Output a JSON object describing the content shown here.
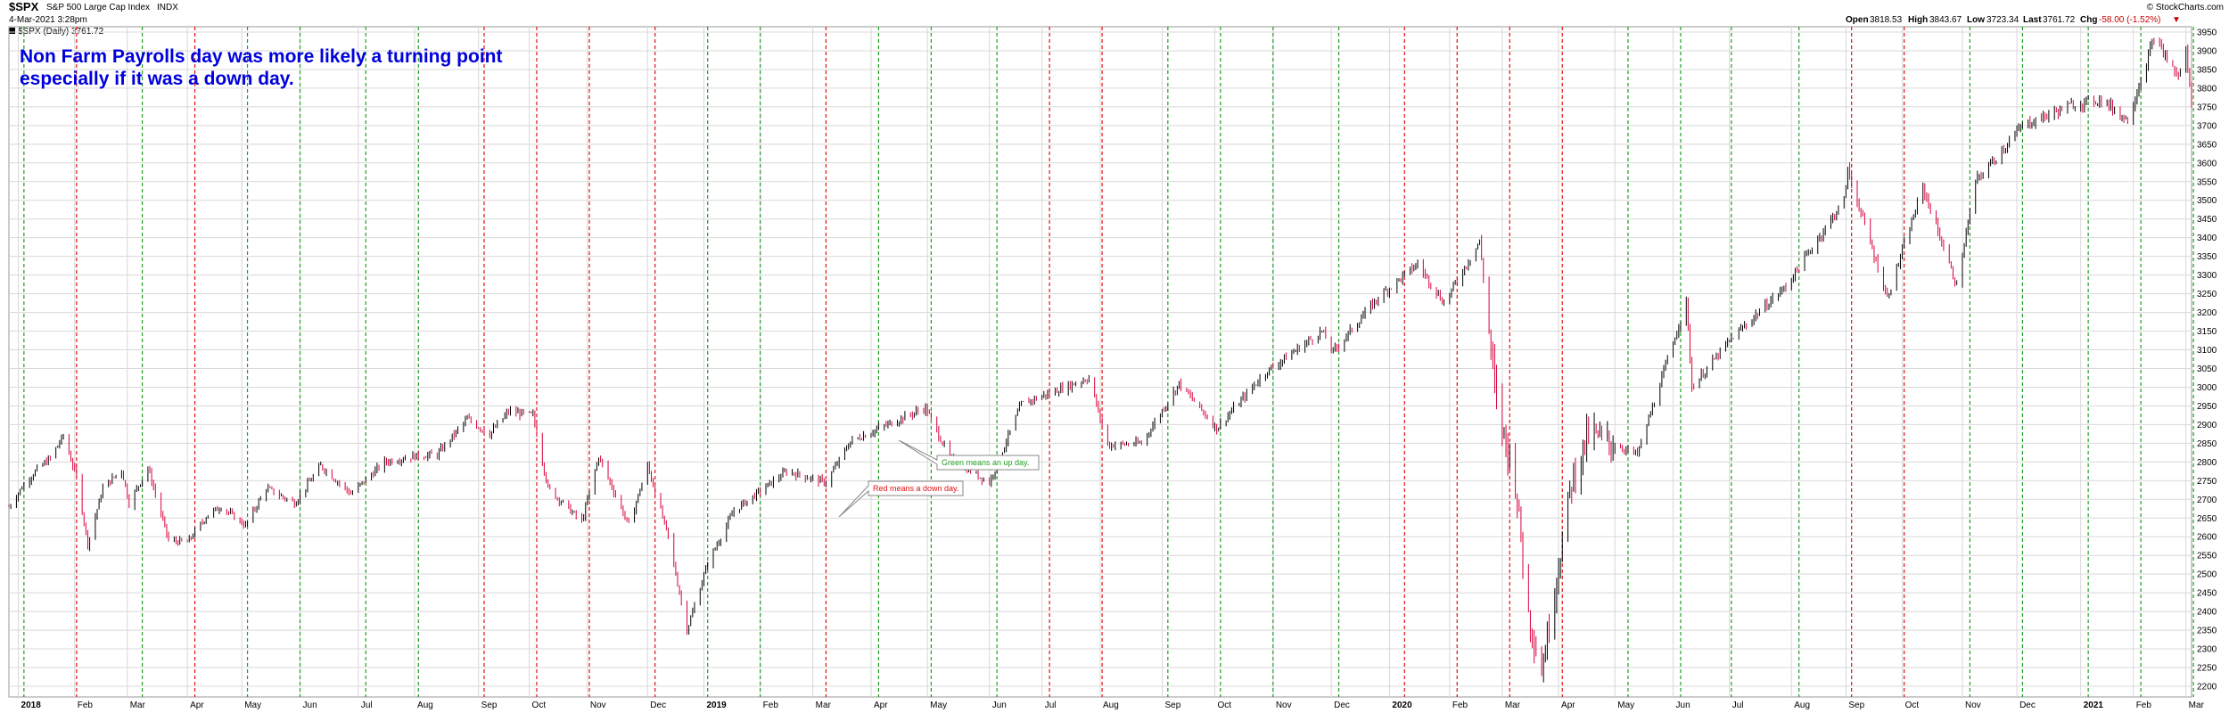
{
  "header": {
    "symbol": "$SPX",
    "name": "S&P 500 Large Cap Index",
    "exchange": "INDX",
    "timestamp": "4-Mar-2021 3:28pm",
    "legend_label": "$SPX (Daily) 3761.72",
    "copyright": "© StockCharts.com",
    "open_label": "Open",
    "open_value": "3818.53",
    "high_label": "High",
    "high_value": "3843.67",
    "low_label": "Low",
    "low_value": "3723.34",
    "last_label": "Last",
    "last_value": "3761.72",
    "chg_label": "Chg",
    "chg_value": "-58.00 (-1.52%)",
    "chg_arrow": "▼"
  },
  "annotation": {
    "line1": "Non Farm Payrolls day was more likely a turning point",
    "line2": "especially if it was a down day."
  },
  "callouts": {
    "green": "Green means an up day.",
    "red": "Red means a down day."
  },
  "colors": {
    "up": "#000000",
    "down": "#d8003a",
    "green_line": "#1f9e1f",
    "red_line": "#e01010",
    "annotation": "#0000dd",
    "grid": "#d8d8d8"
  },
  "chart_data": {
    "type": "line",
    "title": "$SPX S&P 500 Large Cap Index INDX",
    "ylabel": "",
    "xlabel": "",
    "ylim": [
      2200,
      3950
    ],
    "y_ticks": [
      2200,
      2250,
      2300,
      2350,
      2400,
      2450,
      2500,
      2550,
      2600,
      2650,
      2700,
      2750,
      2800,
      2850,
      2900,
      2950,
      3000,
      3050,
      3100,
      3150,
      3200,
      3250,
      3300,
      3350,
      3400,
      3450,
      3500,
      3550,
      3600,
      3650,
      3700,
      3750,
      3800,
      3850,
      3900,
      3950
    ],
    "x_start": "2017-12-28",
    "x_end": "2021-03-04",
    "x_ticks": [
      {
        "date": "2018-01-02",
        "label": "2018",
        "bold": true
      },
      {
        "date": "2018-02-01",
        "label": "Feb"
      },
      {
        "date": "2018-03-01",
        "label": "Mar"
      },
      {
        "date": "2018-04-02",
        "label": "Apr"
      },
      {
        "date": "2018-05-01",
        "label": "May"
      },
      {
        "date": "2018-06-01",
        "label": "Jun"
      },
      {
        "date": "2018-07-02",
        "label": "Jul"
      },
      {
        "date": "2018-08-01",
        "label": "Aug"
      },
      {
        "date": "2018-09-04",
        "label": "Sep"
      },
      {
        "date": "2018-10-01",
        "label": "Oct"
      },
      {
        "date": "2018-11-01",
        "label": "Nov"
      },
      {
        "date": "2018-12-03",
        "label": "Dec"
      },
      {
        "date": "2019-01-02",
        "label": "2019",
        "bold": true
      },
      {
        "date": "2019-02-01",
        "label": "Feb"
      },
      {
        "date": "2019-03-01",
        "label": "Mar"
      },
      {
        "date": "2019-04-01",
        "label": "Apr"
      },
      {
        "date": "2019-05-01",
        "label": "May"
      },
      {
        "date": "2019-06-03",
        "label": "Jun"
      },
      {
        "date": "2019-07-01",
        "label": "Jul"
      },
      {
        "date": "2019-08-01",
        "label": "Aug"
      },
      {
        "date": "2019-09-03",
        "label": "Sep"
      },
      {
        "date": "2019-10-01",
        "label": "Oct"
      },
      {
        "date": "2019-11-01",
        "label": "Nov"
      },
      {
        "date": "2019-12-02",
        "label": "Dec"
      },
      {
        "date": "2020-01-02",
        "label": "2020",
        "bold": true
      },
      {
        "date": "2020-02-03",
        "label": "Feb"
      },
      {
        "date": "2020-03-02",
        "label": "Mar"
      },
      {
        "date": "2020-04-01",
        "label": "Apr"
      },
      {
        "date": "2020-05-01",
        "label": "May"
      },
      {
        "date": "2020-06-01",
        "label": "Jun"
      },
      {
        "date": "2020-07-01",
        "label": "Jul"
      },
      {
        "date": "2020-08-03",
        "label": "Aug"
      },
      {
        "date": "2020-09-01",
        "label": "Sep"
      },
      {
        "date": "2020-10-01",
        "label": "Oct"
      },
      {
        "date": "2020-11-02",
        "label": "Nov"
      },
      {
        "date": "2020-12-01",
        "label": "Dec"
      },
      {
        "date": "2021-01-04",
        "label": "2021",
        "bold": true
      },
      {
        "date": "2021-02-01",
        "label": "Feb"
      },
      {
        "date": "2021-03-01",
        "label": "Mar"
      }
    ],
    "nfp_days": [
      {
        "date": "2018-01-05",
        "dir": "up"
      },
      {
        "date": "2018-02-02",
        "dir": "down"
      },
      {
        "date": "2018-03-09",
        "dir": "up"
      },
      {
        "date": "2018-04-06",
        "dir": "down"
      },
      {
        "date": "2018-05-04",
        "dir": "up"
      },
      {
        "date": "2018-06-01",
        "dir": "up"
      },
      {
        "date": "2018-07-06",
        "dir": "up"
      },
      {
        "date": "2018-08-03",
        "dir": "up"
      },
      {
        "date": "2018-09-07",
        "dir": "down"
      },
      {
        "date": "2018-10-05",
        "dir": "down"
      },
      {
        "date": "2018-11-02",
        "dir": "down"
      },
      {
        "date": "2018-12-07",
        "dir": "down"
      },
      {
        "date": "2019-01-04",
        "dir": "up"
      },
      {
        "date": "2019-02-01",
        "dir": "up"
      },
      {
        "date": "2019-03-08",
        "dir": "down"
      },
      {
        "date": "2019-04-05",
        "dir": "up"
      },
      {
        "date": "2019-05-03",
        "dir": "up"
      },
      {
        "date": "2019-06-07",
        "dir": "up"
      },
      {
        "date": "2019-07-05",
        "dir": "down"
      },
      {
        "date": "2019-08-02",
        "dir": "down"
      },
      {
        "date": "2019-09-06",
        "dir": "up"
      },
      {
        "date": "2019-10-04",
        "dir": "up"
      },
      {
        "date": "2019-11-01",
        "dir": "up"
      },
      {
        "date": "2019-12-06",
        "dir": "up"
      },
      {
        "date": "2020-01-10",
        "dir": "down"
      },
      {
        "date": "2020-02-07",
        "dir": "down"
      },
      {
        "date": "2020-03-06",
        "dir": "down"
      },
      {
        "date": "2020-04-03",
        "dir": "down"
      },
      {
        "date": "2020-05-08",
        "dir": "up"
      },
      {
        "date": "2020-06-05",
        "dir": "up"
      },
      {
        "date": "2020-07-02",
        "dir": "up"
      },
      {
        "date": "2020-08-07",
        "dir": "up"
      },
      {
        "date": "2020-09-04",
        "dir": "down"
      },
      {
        "date": "2020-10-02",
        "dir": "down"
      },
      {
        "date": "2020-11-06",
        "dir": "up"
      },
      {
        "date": "2020-12-04",
        "dir": "up"
      },
      {
        "date": "2021-01-08",
        "dir": "up"
      },
      {
        "date": "2021-02-05",
        "dir": "up"
      },
      {
        "date": "2021-03-05",
        "dir": "up"
      }
    ],
    "series": [
      {
        "name": "$SPX (Daily)",
        "points": [
          [
            "2017-12-28",
            2680
          ],
          [
            "2018-01-05",
            2740
          ],
          [
            "2018-01-12",
            2780
          ],
          [
            "2018-01-19",
            2810
          ],
          [
            "2018-01-26",
            2870
          ],
          [
            "2018-02-02",
            2760
          ],
          [
            "2018-02-08",
            2580
          ],
          [
            "2018-02-16",
            2730
          ],
          [
            "2018-02-26",
            2780
          ],
          [
            "2018-03-02",
            2690
          ],
          [
            "2018-03-12",
            2785
          ],
          [
            "2018-03-23",
            2590
          ],
          [
            "2018-04-02",
            2585
          ],
          [
            "2018-04-13",
            2660
          ],
          [
            "2018-04-20",
            2680
          ],
          [
            "2018-05-03",
            2630
          ],
          [
            "2018-05-14",
            2730
          ],
          [
            "2018-05-29",
            2690
          ],
          [
            "2018-06-12",
            2790
          ],
          [
            "2018-06-28",
            2715
          ],
          [
            "2018-07-16",
            2800
          ],
          [
            "2018-07-31",
            2815
          ],
          [
            "2018-08-13",
            2820
          ],
          [
            "2018-08-29",
            2915
          ],
          [
            "2018-09-10",
            2875
          ],
          [
            "2018-09-20",
            2935
          ],
          [
            "2018-10-03",
            2925
          ],
          [
            "2018-10-11",
            2730
          ],
          [
            "2018-10-29",
            2640
          ],
          [
            "2018-11-07",
            2815
          ],
          [
            "2018-11-23",
            2630
          ],
          [
            "2018-12-03",
            2790
          ],
          [
            "2018-12-14",
            2600
          ],
          [
            "2018-12-24",
            2350
          ],
          [
            "2019-01-04",
            2530
          ],
          [
            "2019-01-18",
            2670
          ],
          [
            "2019-02-15",
            2775
          ],
          [
            "2019-03-08",
            2745
          ],
          [
            "2019-03-21",
            2855
          ],
          [
            "2019-04-12",
            2905
          ],
          [
            "2019-04-30",
            2945
          ],
          [
            "2019-05-13",
            2810
          ],
          [
            "2019-06-03",
            2745
          ],
          [
            "2019-06-20",
            2955
          ],
          [
            "2019-07-26",
            3025
          ],
          [
            "2019-08-05",
            2845
          ],
          [
            "2019-08-23",
            2850
          ],
          [
            "2019-09-12",
            3010
          ],
          [
            "2019-10-02",
            2890
          ],
          [
            "2019-10-28",
            3040
          ],
          [
            "2019-11-27",
            3150
          ],
          [
            "2019-12-03",
            3095
          ],
          [
            "2019-12-27",
            3240
          ],
          [
            "2020-01-17",
            3330
          ],
          [
            "2020-01-31",
            3225
          ],
          [
            "2020-02-19",
            3390
          ],
          [
            "2020-02-28",
            2955
          ],
          [
            "2020-03-09",
            2750
          ],
          [
            "2020-03-16",
            2390
          ],
          [
            "2020-03-23",
            2240
          ],
          [
            "2020-04-08",
            2750
          ],
          [
            "2020-04-17",
            2875
          ],
          [
            "2020-05-13",
            2820
          ],
          [
            "2020-06-08",
            3230
          ],
          [
            "2020-06-11",
            3000
          ],
          [
            "2020-07-02",
            3130
          ],
          [
            "2020-07-31",
            3270
          ],
          [
            "2020-08-31",
            3500
          ],
          [
            "2020-09-02",
            3580
          ],
          [
            "2020-09-23",
            3240
          ],
          [
            "2020-10-12",
            3535
          ],
          [
            "2020-10-30",
            3270
          ],
          [
            "2020-11-09",
            3550
          ],
          [
            "2020-12-04",
            3700
          ],
          [
            "2020-12-31",
            3756
          ],
          [
            "2021-01-15",
            3770
          ],
          [
            "2021-01-29",
            3714
          ],
          [
            "2021-02-12",
            3934
          ],
          [
            "2021-02-25",
            3829
          ],
          [
            "2021-03-01",
            3901
          ],
          [
            "2021-03-04",
            3762
          ]
        ]
      }
    ]
  }
}
